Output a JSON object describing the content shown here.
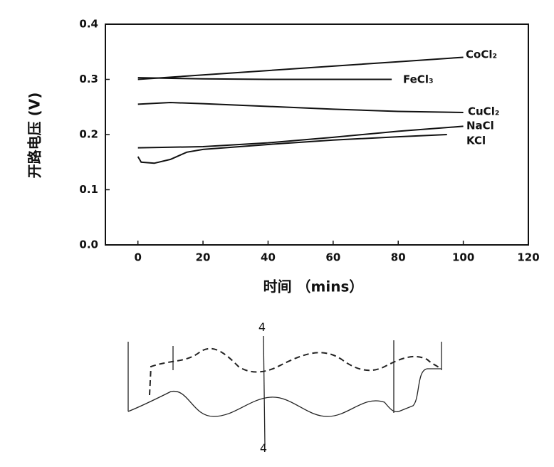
{
  "chart_data": {
    "type": "line",
    "x_label": "时间 （mins）",
    "y_label": "开路电压 (V)",
    "xlim": [
      -10,
      120
    ],
    "xticks": [
      0,
      20,
      40,
      60,
      80,
      100,
      120
    ],
    "ylim": [
      0,
      0.4
    ],
    "yticks": [
      {
        "value": 0,
        "label": "0.0"
      },
      0.1,
      0.2,
      0.3,
      0.4
    ],
    "series": [
      {
        "name": "CoCl₂",
        "color": "#111111",
        "x": [
          0,
          20,
          40,
          60,
          80,
          100
        ],
        "values": [
          0.3,
          0.308,
          0.316,
          0.324,
          0.332,
          0.34
        ]
      },
      {
        "name": "FeCl₃",
        "color": "#111111",
        "x": [
          0,
          20,
          40,
          60,
          78
        ],
        "values": [
          0.303,
          0.301,
          0.3,
          0.3,
          0.3
        ]
      },
      {
        "name": "CuCl₂",
        "color": "#111111",
        "x": [
          0,
          10,
          20,
          40,
          60,
          80,
          100
        ],
        "values": [
          0.255,
          0.258,
          0.256,
          0.251,
          0.246,
          0.242,
          0.24
        ]
      },
      {
        "name": "NaCl",
        "color": "#111111",
        "x": [
          0,
          20,
          40,
          60,
          80,
          100
        ],
        "values": [
          0.176,
          0.178,
          0.185,
          0.195,
          0.206,
          0.215
        ]
      },
      {
        "name": "KCl",
        "color": "#111111",
        "x": [
          0,
          1,
          5,
          10,
          15,
          20,
          40,
          60,
          80,
          95
        ],
        "values": [
          0.16,
          0.15,
          0.148,
          0.155,
          0.168,
          0.173,
          0.182,
          0.19,
          0.196,
          0.2
        ]
      }
    ]
  },
  "diagram": {
    "labels": [
      "4",
      "4"
    ]
  }
}
